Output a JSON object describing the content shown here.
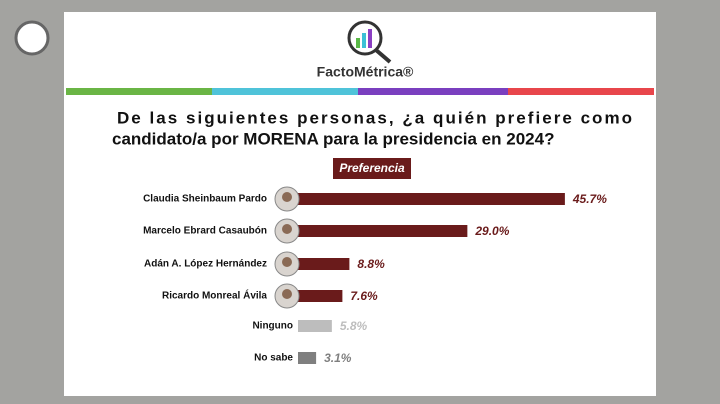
{
  "chart_data": {
    "type": "barh",
    "logo": "FactoMétrica®",
    "title_lines": [
      "De las siguientes personas, ¿a quién prefiere como",
      "candidato/a por MORENA para la presidencia en 2024?"
    ],
    "subtitle": "Preferencia",
    "categories": [
      "Claudia Sheinbaum Pardo",
      "Marcelo Ebrard Casaubón",
      "Adán A. López Hernández",
      "Ricardo Monreal Ávila",
      "Ninguno",
      "No sabe"
    ],
    "values": [
      45.7,
      29.0,
      8.8,
      7.6,
      5.8,
      3.1
    ],
    "value_labels": [
      "45.7%",
      "29.0%",
      "8.8%",
      "7.6%",
      "5.8%",
      "3.1%"
    ],
    "colors": [
      "#6a1b1b",
      "#6a1b1b",
      "#6a1b1b",
      "#6a1b1b",
      "#bdbdbd",
      "#7f7f7f"
    ],
    "xlim": [
      0,
      50
    ]
  }
}
